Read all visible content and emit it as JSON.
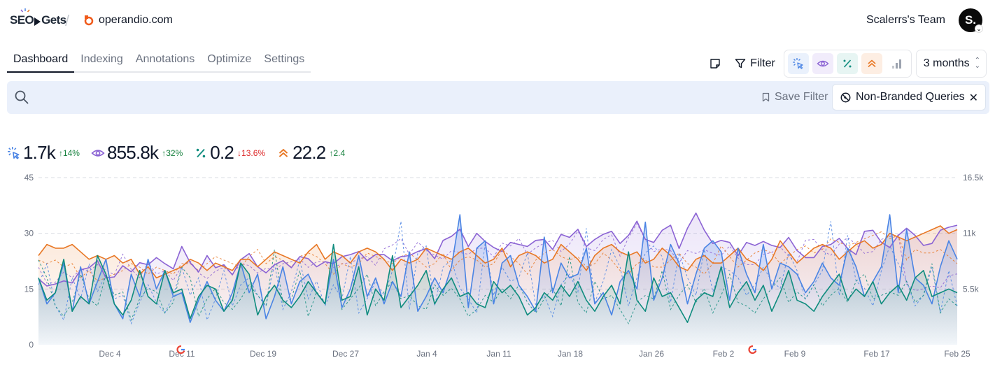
{
  "brand": {
    "name": "SEOGets"
  },
  "site": {
    "domain": "operandio.com"
  },
  "team": {
    "name": "Scalerrs's Team",
    "avatar_initial": "S."
  },
  "tabs": [
    {
      "label": "Dashboard",
      "active": true
    },
    {
      "label": "Indexing",
      "active": false
    },
    {
      "label": "Annotations",
      "active": false
    },
    {
      "label": "Optimize",
      "active": false
    },
    {
      "label": "Settings",
      "active": false
    }
  ],
  "toolbar": {
    "filter_label": "Filter",
    "range_label": "3 months",
    "metric_toggles": [
      "clicks-icon",
      "impressions-icon",
      "ctr-icon",
      "position-icon",
      "bars-icon"
    ]
  },
  "search": {
    "placeholder": "",
    "save_filter_label": "Save Filter",
    "active_filter_chip": "Non-Branded Queries"
  },
  "stats": {
    "clicks": {
      "value": "1.7k",
      "change": "14%",
      "direction": "up"
    },
    "impressions": {
      "value": "855.8k",
      "change": "32%",
      "direction": "up"
    },
    "ctr": {
      "value": "0.2",
      "change": "13.6%",
      "direction": "down"
    },
    "position": {
      "value": "22.2",
      "change": "2.4",
      "direction": "up"
    }
  },
  "colors": {
    "clicks": "#4a84e4",
    "impressions": "#8b63d4",
    "ctr": "#0f8c7e",
    "position": "#e87724",
    "up": "#15803d",
    "down": "#dc2626"
  },
  "chart_data": {
    "type": "line",
    "left_axis": {
      "ticks": [
        "0",
        "15",
        "30",
        "45"
      ],
      "range": [
        0,
        45
      ]
    },
    "right_axis": {
      "ticks": [
        "5.5k",
        "11k",
        "16.5k"
      ],
      "range": [
        0,
        16500
      ]
    },
    "x_ticks": [
      "Dec 4",
      "Dec 11",
      "Dec 19",
      "Dec 27",
      "Jan 4",
      "Jan 11",
      "Jan 18",
      "Jan 26",
      "Feb 2",
      "Feb 9",
      "Feb 17",
      "Feb 25"
    ],
    "annotations": [
      {
        "icon": "google-icon",
        "near": "Dec 11"
      },
      {
        "icon": "google-icon",
        "near": "Feb 2"
      }
    ],
    "series": [
      {
        "name": "Clicks",
        "axis": "left",
        "values": [
          18,
          11,
          14,
          22,
          9,
          21,
          11,
          17,
          23,
          11,
          7,
          19,
          13,
          23,
          15,
          20,
          13,
          14,
          6,
          12,
          17,
          12,
          9,
          14,
          22,
          14,
          19,
          7,
          13,
          21,
          11,
          17,
          19,
          14,
          11,
          23,
          10,
          15,
          24,
          13,
          18,
          11,
          17,
          13,
          25,
          9,
          13,
          18,
          14,
          21,
          35,
          10,
          26,
          28,
          11,
          22,
          24,
          16,
          13,
          9,
          29,
          14,
          22,
          18,
          19,
          26,
          11,
          14,
          8,
          17,
          20,
          15,
          33,
          12,
          18,
          27,
          22,
          11,
          19,
          26,
          28,
          25,
          12,
          26,
          19,
          14,
          27,
          15,
          22,
          21,
          19,
          14,
          17,
          22,
          18,
          16,
          26,
          21,
          13,
          17,
          21,
          35,
          14,
          31,
          18,
          16,
          11,
          21,
          28,
          23
        ]
      },
      {
        "name": "Impressions",
        "axis": "right",
        "values": [
          6500,
          5800,
          6000,
          6300,
          6100,
          7400,
          7600,
          8300,
          6600,
          6700,
          7800,
          7200,
          8100,
          7900,
          8600,
          8000,
          7500,
          9700,
          8100,
          7200,
          8800,
          7600,
          7900,
          6900,
          8400,
          9000,
          7700,
          7100,
          7900,
          8300,
          7600,
          8700,
          8500,
          7700,
          8200,
          8000,
          8700,
          8900,
          9200,
          8300,
          8900,
          8900,
          8300,
          8700,
          8800,
          9200,
          9500,
          8500,
          10300,
          10700,
          11400,
          9700,
          11000,
          10200,
          9600,
          9200,
          10100,
          9900,
          9700,
          10300,
          10400,
          9400,
          10900,
          10600,
          11400,
          9700,
          10400,
          10900,
          11200,
          10000,
          10800,
          12200,
          10400,
          10100,
          11300,
          11800,
          9500,
          11500,
          13000,
          11300,
          10000,
          10300,
          10100,
          8800,
          10100,
          9800,
          10200,
          9800,
          9600,
          10600,
          9300,
          8600,
          8600,
          9700,
          9900,
          10500,
          9500,
          8900,
          11200,
          11300,
          10100,
          9600,
          10800,
          11500,
          10800,
          9800,
          10000,
          11300,
          11600,
          11800
        ]
      },
      {
        "name": "CTR",
        "axis": "left",
        "values": [
          18,
          12,
          14,
          23,
          9,
          13,
          11,
          24,
          19,
          11,
          8,
          12,
          20,
          13,
          11,
          20,
          14,
          15,
          7,
          13,
          16,
          15,
          9,
          12,
          22,
          19,
          8,
          13,
          16,
          12,
          10,
          13,
          17,
          14,
          11,
          27,
          12,
          13,
          21,
          8,
          15,
          12,
          24,
          10,
          13,
          16,
          20,
          11,
          15,
          18,
          13,
          14,
          11,
          10,
          17,
          14,
          16,
          13,
          8,
          10,
          14,
          12,
          16,
          13,
          17,
          12,
          9,
          13,
          16,
          11,
          25,
          12,
          9,
          18,
          13,
          14,
          10,
          6,
          12,
          14,
          13,
          21,
          10,
          14,
          17,
          12,
          16,
          9,
          14,
          20,
          12,
          11,
          9,
          13,
          16,
          19,
          12,
          15,
          13,
          17,
          11,
          14,
          16,
          12,
          18,
          20,
          13,
          14,
          15,
          14
        ]
      },
      {
        "name": "Position",
        "axis": "left",
        "values": [
          24,
          27,
          26,
          26,
          27,
          25,
          23,
          24,
          23,
          24,
          22,
          23,
          19,
          21,
          18,
          19,
          20,
          21,
          23,
          22,
          20,
          22,
          21,
          20,
          23,
          23,
          21,
          23,
          25,
          24,
          23,
          22,
          25,
          27,
          23,
          25,
          24,
          22,
          25,
          26,
          25,
          23,
          20,
          23,
          22,
          23,
          26,
          25,
          24,
          23,
          25,
          26,
          24,
          22,
          23,
          26,
          21,
          24,
          25,
          24,
          22,
          23,
          27,
          25,
          23,
          20,
          24,
          26,
          27,
          25,
          24,
          25,
          22,
          23,
          26,
          24,
          21,
          20,
          23,
          24,
          22,
          22,
          24,
          26,
          23,
          22,
          20,
          23,
          28,
          25,
          22,
          24,
          26,
          27,
          26,
          23,
          25,
          27,
          28,
          26,
          27,
          30,
          29,
          28,
          29,
          30,
          31,
          32,
          30,
          31
        ]
      }
    ]
  }
}
